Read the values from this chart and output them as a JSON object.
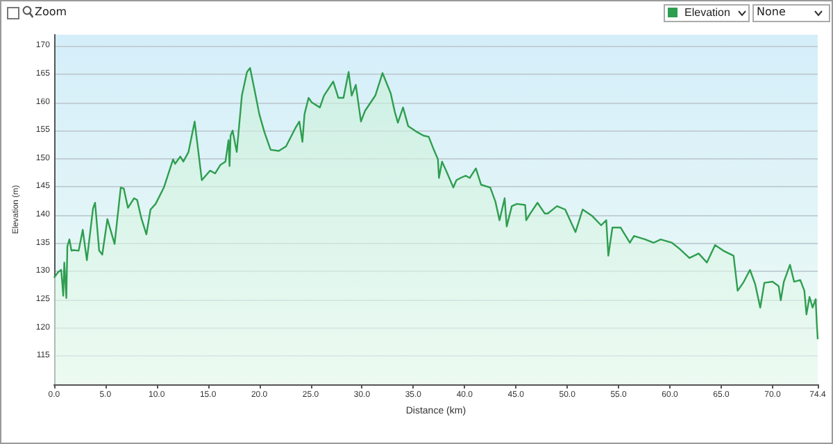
{
  "chart_data": {
    "type": "area",
    "xlabel": "Distance (km)",
    "ylabel": "Elevation (m)",
    "annotations": [
      "Zoom",
      "None"
    ],
    "legend": "top right",
    "grid": "y",
    "marker": "none",
    "line_style": "solid",
    "xlim": [
      0,
      74.4
    ],
    "ylim": [
      110,
      172
    ],
    "xticks": [
      {
        "value": 0,
        "label": "0.0"
      },
      {
        "value": 5,
        "label": "5.0"
      },
      {
        "value": 10,
        "label": "10.0"
      },
      {
        "value": 15,
        "label": "15.0"
      },
      {
        "value": 20,
        "label": "20.0"
      },
      {
        "value": 25,
        "label": "25.0"
      },
      {
        "value": 30,
        "label": "30.0"
      },
      {
        "value": 35,
        "label": "35.0"
      },
      {
        "value": 40,
        "label": "40.0"
      },
      {
        "value": 45,
        "label": "45.0"
      },
      {
        "value": 50,
        "label": "50.0"
      },
      {
        "value": 55,
        "label": "55.0"
      },
      {
        "value": 60,
        "label": "60.0"
      },
      {
        "value": 65,
        "label": "65.0"
      },
      {
        "value": 70,
        "label": "70.0"
      },
      {
        "value": 74.4,
        "label": "74.4"
      }
    ],
    "yticks": [
      115,
      120,
      125,
      130,
      135,
      140,
      145,
      150,
      155,
      160,
      165,
      170
    ],
    "x": [
      0,
      0.4,
      0.7,
      0.9,
      1.0,
      1.2,
      1.3,
      1.5,
      1.7,
      1.9,
      2.4,
      2.8,
      3.2,
      3.8,
      4.0,
      4.4,
      4.7,
      5.2,
      5.9,
      6.5,
      6.8,
      7.2,
      7.8,
      8.1,
      8.5,
      9.0,
      9.4,
      9.9,
      10.7,
      11.6,
      11.8,
      12.3,
      12.6,
      13.1,
      13.7,
      14.4,
      15.2,
      15.7,
      16.2,
      16.7,
      17.0,
      17.1,
      17.2,
      17.4,
      17.8,
      18.3,
      18.8,
      19.1,
      19.6,
      20.0,
      20.5,
      21.1,
      21.9,
      22.6,
      23.5,
      23.9,
      24.2,
      24.4,
      24.8,
      25.1,
      25.9,
      26.3,
      27.2,
      27.7,
      28.2,
      28.7,
      29.0,
      29.4,
      29.9,
      30.3,
      31.3,
      32.0,
      32.8,
      33.2,
      33.5,
      34.0,
      34.5,
      35.4,
      36.0,
      36.5,
      37.0,
      37.4,
      37.5,
      37.8,
      38.2,
      38.9,
      39.2,
      39.6,
      40.1,
      40.5,
      41.1,
      41.6,
      42.5,
      43.0,
      43.4,
      43.9,
      44.1,
      44.6,
      45.1,
      45.9,
      46.0,
      46.4,
      47.1,
      47.8,
      48.1,
      49.0,
      49.8,
      50.8,
      51.5,
      52.4,
      53.3,
      53.8,
      54.0,
      54.4,
      55.2,
      56.1,
      56.5,
      57.6,
      58.4,
      59.1,
      60.2,
      60.9,
      61.9,
      62.8,
      63.6,
      64.4,
      65.2,
      66.2,
      66.6,
      67.2,
      67.8,
      68.3,
      68.8,
      69.2,
      70.0,
      70.6,
      70.8,
      71.1,
      71.7,
      72.1,
      72.7,
      73.1,
      73.3,
      73.6,
      73.9,
      74.2,
      74.3,
      74.4
    ],
    "series": [
      {
        "name": "Elevation",
        "color": "#2e9e4f",
        "values": [
          128.9,
          129.9,
          130.3,
          125.7,
          131.6,
          125.3,
          134.5,
          135.7,
          133.7,
          133.8,
          133.7,
          137.4,
          132.0,
          141.2,
          142.2,
          133.7,
          133.0,
          139.3,
          134.9,
          144.9,
          144.7,
          141.3,
          143.0,
          142.7,
          139.5,
          136.6,
          141.0,
          142.0,
          144.9,
          149.9,
          149.1,
          150.4,
          149.5,
          151.2,
          156.6,
          146.2,
          147.9,
          147.4,
          148.9,
          149.5,
          153.3,
          148.7,
          154.1,
          155.0,
          151.2,
          161.2,
          165.4,
          166.1,
          161.6,
          157.9,
          154.7,
          151.6,
          151.4,
          152.2,
          155.4,
          156.6,
          153.0,
          157.9,
          160.8,
          160.0,
          159.1,
          161.2,
          163.7,
          160.8,
          160.8,
          165.4,
          161.2,
          163.1,
          156.6,
          158.5,
          161.2,
          165.2,
          161.6,
          158.3,
          156.4,
          159.1,
          155.8,
          154.7,
          154.1,
          153.9,
          151.6,
          149.9,
          146.6,
          149.5,
          147.9,
          144.9,
          146.2,
          146.6,
          147.0,
          146.6,
          148.3,
          145.4,
          144.9,
          142.4,
          139.1,
          143.0,
          138.0,
          141.6,
          142.0,
          141.8,
          139.1,
          140.3,
          142.2,
          140.3,
          140.3,
          141.6,
          141.0,
          137.0,
          141.0,
          139.9,
          138.2,
          139.1,
          132.8,
          137.8,
          137.8,
          135.1,
          136.3,
          135.7,
          135.1,
          135.7,
          135.1,
          134.1,
          132.4,
          133.2,
          131.6,
          134.7,
          133.7,
          132.8,
          126.6,
          128.2,
          130.3,
          127.8,
          123.6,
          128.0,
          128.2,
          127.4,
          124.9,
          128.2,
          131.2,
          128.2,
          128.5,
          126.6,
          122.4,
          125.5,
          123.6,
          125.1,
          121.1,
          118.0
        ]
      }
    ]
  }
}
